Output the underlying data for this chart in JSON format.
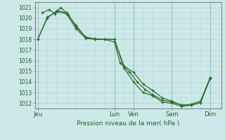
{
  "xlabel": "Pression niveau de la mer( hPa )",
  "ylim": [
    1011.5,
    1021.5
  ],
  "yticks": [
    1012,
    1013,
    1014,
    1015,
    1016,
    1017,
    1018,
    1019,
    1020,
    1021
  ],
  "xtick_labels": [
    "Jeu",
    "Lun",
    "Ven",
    "Sam",
    "Dim"
  ],
  "xtick_positions": [
    0,
    4.0,
    5.0,
    7.0,
    9.0
  ],
  "xlim": [
    -0.15,
    9.6
  ],
  "line_color": "#2a6a2a",
  "bg_color": "#cce9e9",
  "grid_color": "#b0d4d4",
  "series": [
    {
      "x": [
        0.0,
        0.5,
        1.0,
        1.5,
        2.0,
        2.5,
        3.0,
        3.5,
        4.0,
        4.5,
        5.0,
        5.5,
        6.0,
        6.5,
        7.0,
        7.5,
        8.0,
        8.5,
        9.0
      ],
      "y": [
        1018.0,
        1020.0,
        1020.7,
        1020.5,
        1019.3,
        1018.2,
        1018.0,
        1018.0,
        1018.0,
        1015.5,
        1014.9,
        1013.8,
        1013.2,
        1012.5,
        1012.2,
        1011.8,
        1011.9,
        1012.2,
        1014.4
      ]
    },
    {
      "x": [
        0.25,
        0.6,
        0.9,
        1.2,
        1.6,
        2.0,
        2.5,
        3.0,
        3.5,
        4.0,
        4.3,
        4.8,
        5.2,
        5.6,
        6.0,
        6.5,
        7.0,
        7.5,
        8.0,
        8.5,
        9.0
      ],
      "y": [
        1020.5,
        1020.8,
        1020.4,
        1021.0,
        1020.3,
        1019.2,
        1018.2,
        1018.05,
        1018.0,
        1017.75,
        1015.8,
        1014.9,
        1014.0,
        1013.3,
        1012.8,
        1012.3,
        1012.1,
        1011.85,
        1011.8,
        1012.05,
        1014.4
      ]
    },
    {
      "x": [
        0.0,
        0.5,
        1.0,
        1.5,
        2.0,
        2.5,
        3.0,
        3.5,
        4.0,
        4.5,
        5.0,
        5.5,
        6.0,
        6.5,
        7.0,
        7.5,
        8.0,
        8.5,
        9.0
      ],
      "y": [
        1018.0,
        1020.1,
        1020.6,
        1020.4,
        1019.0,
        1018.1,
        1018.0,
        1018.0,
        1018.0,
        1015.3,
        1014.0,
        1013.0,
        1012.7,
        1012.1,
        1012.0,
        1011.7,
        1011.8,
        1012.05,
        1014.3
      ]
    }
  ]
}
